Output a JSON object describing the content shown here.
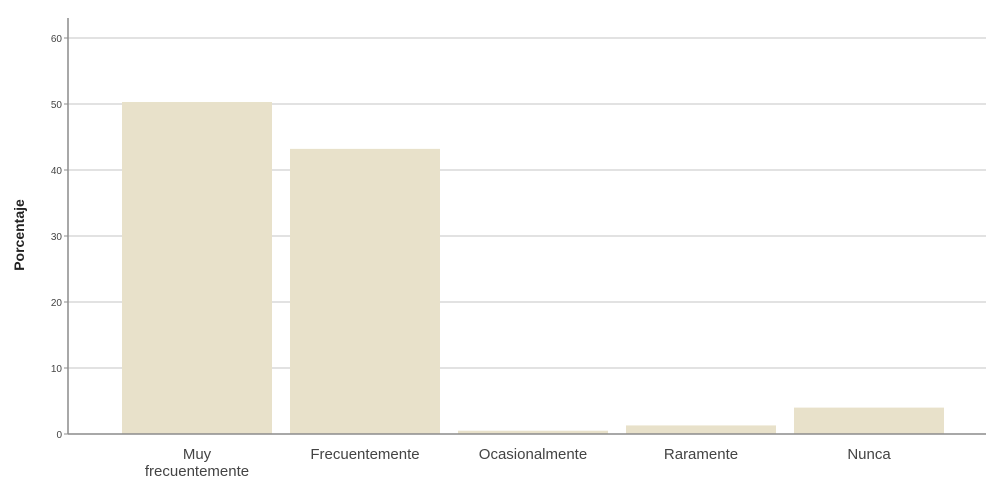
{
  "chart_data": {
    "type": "bar",
    "title": "",
    "xlabel": "",
    "ylabel": "Porcentaje",
    "categories": [
      "Muy frecuentemente",
      "Frecuentemente",
      "Ocasionalmente",
      "Raramente",
      "Nunca"
    ],
    "category_lines": [
      [
        "Muy",
        "frecuentemente"
      ],
      [
        "Frecuentemente"
      ],
      [
        "Ocasionalmente"
      ],
      [
        "Raramente"
      ],
      [
        "Nunca"
      ]
    ],
    "values": [
      50.3,
      43.2,
      0.5,
      1.3,
      4.0
    ],
    "ylim": [
      0,
      60
    ],
    "yticks": [
      0,
      10,
      20,
      30,
      40,
      50,
      60
    ],
    "grid": true,
    "legend": "none",
    "colors": {
      "bar": "#e8e1ca",
      "grid": "#d9d9d9",
      "axis": "#8c8c8c",
      "text": "#444444"
    }
  }
}
